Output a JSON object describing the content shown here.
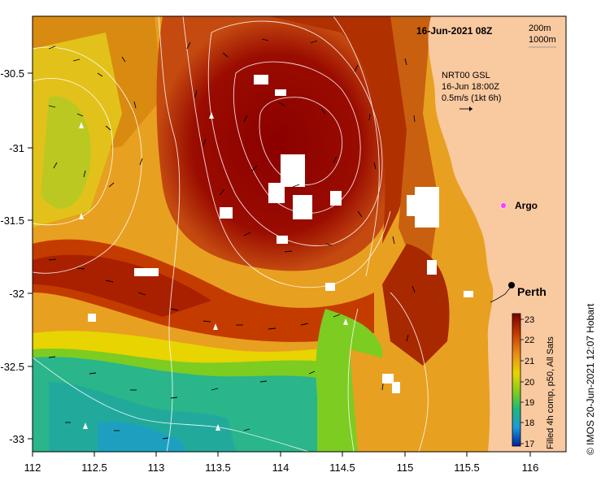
{
  "map": {
    "title": "16-Jun-2021 08Z",
    "contour_legend": [
      "200m",
      "1000m"
    ],
    "current_info": [
      "NRT00 GSL",
      "16-Jun 18:00Z",
      "0.5m/s (1kt 6h)"
    ],
    "x_ticks": [
      "112",
      "112.5",
      "113",
      "113.5",
      "114",
      "114.5",
      "115",
      "115.5",
      "116"
    ],
    "y_ticks": [
      "-30.5",
      "-31",
      "-31.5",
      "-32",
      "-32.5",
      "-33"
    ],
    "places": [
      {
        "name": "Argo",
        "marker": "magenta-circle"
      },
      {
        "name": "Perth",
        "marker": "black-dot"
      }
    ],
    "colorbar": {
      "title": "Filled 4h comp, p50, All Sats",
      "ticks": [
        "23",
        "22",
        "21",
        "20",
        "19",
        "18",
        "17"
      ],
      "colors": [
        "#7a0000",
        "#c43b00",
        "#e88a1a",
        "#e8d400",
        "#7ccc22",
        "#1fb87a",
        "#1a9ad8",
        "#0020a0"
      ]
    },
    "credit": "© IMOS 20-Jun-2021 12:07 Hobart",
    "colors": {
      "land": "#f9c9a0",
      "warm_core": "#8b0000",
      "cool_water": "#2ab58a",
      "contour": "#ffffff"
    }
  }
}
